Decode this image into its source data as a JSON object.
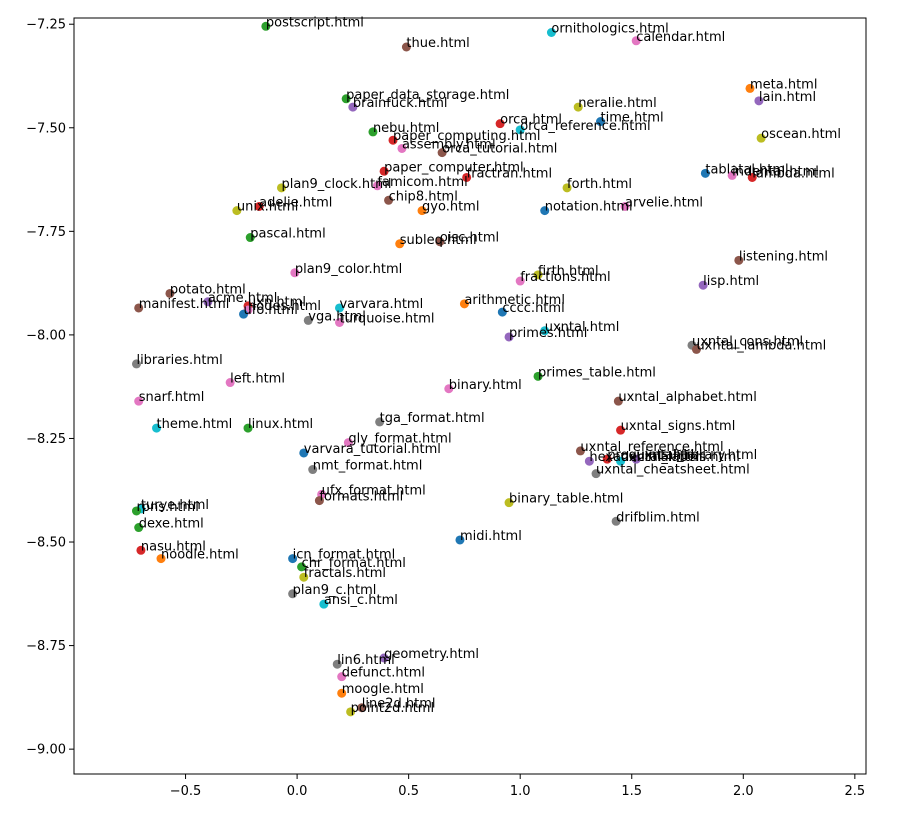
{
  "chart_data": {
    "type": "scatter",
    "title": "",
    "xlabel": "",
    "ylabel": "",
    "xlim": [
      -1.0,
      2.55
    ],
    "ylim": [
      -9.06,
      -7.235
    ],
    "grid": false,
    "legend": "none",
    "x_ticks": [
      {
        "value": -0.5,
        "label": "−0.5"
      },
      {
        "value": 0.0,
        "label": "0.0"
      },
      {
        "value": 0.5,
        "label": "0.5"
      },
      {
        "value": 1.0,
        "label": "1.0"
      },
      {
        "value": 1.5,
        "label": "1.5"
      },
      {
        "value": 2.0,
        "label": "2.0"
      },
      {
        "value": 2.5,
        "label": "2.5"
      }
    ],
    "y_ticks": [
      {
        "value": -7.25,
        "label": "−7.25"
      },
      {
        "value": -7.5,
        "label": "−7.50"
      },
      {
        "value": -7.75,
        "label": "−7.75"
      },
      {
        "value": -8.0,
        "label": "−8.00"
      },
      {
        "value": -8.25,
        "label": "−8.25"
      },
      {
        "value": -8.5,
        "label": "−8.50"
      },
      {
        "value": -8.75,
        "label": "−8.75"
      },
      {
        "value": -9.0,
        "label": "−9.00"
      }
    ],
    "palette": [
      "#1f77b4",
      "#ff7f0e",
      "#2ca02c",
      "#d62728",
      "#9467bd",
      "#8c564b",
      "#e377c2",
      "#7f7f7f",
      "#bcbd22",
      "#17becf"
    ],
    "points": [
      {
        "label": "postscript.html",
        "x": -0.14,
        "y": -7.255,
        "color": "#2ca02c"
      },
      {
        "label": "thue.html",
        "x": 0.49,
        "y": -7.305,
        "color": "#8c564b"
      },
      {
        "label": "ornithologics.html",
        "x": 1.14,
        "y": -7.27,
        "color": "#17becf"
      },
      {
        "label": "calendar.html",
        "x": 1.52,
        "y": -7.29,
        "color": "#e377c2"
      },
      {
        "label": "meta.html",
        "x": 2.03,
        "y": -7.405,
        "color": "#ff7f0e"
      },
      {
        "label": "lain.html",
        "x": 2.07,
        "y": -7.435,
        "color": "#9467bd"
      },
      {
        "label": "paper_data_storage.html",
        "x": 0.22,
        "y": -7.43,
        "color": "#2ca02c"
      },
      {
        "label": "brainfuck.html",
        "x": 0.25,
        "y": -7.45,
        "color": "#9467bd"
      },
      {
        "label": "neralie.html",
        "x": 1.26,
        "y": -7.45,
        "color": "#bcbd22"
      },
      {
        "label": "time.html",
        "x": 1.36,
        "y": -7.485,
        "color": "#1f77b4"
      },
      {
        "label": "orca.html",
        "x": 0.91,
        "y": -7.49,
        "color": "#d62728"
      },
      {
        "label": "orca_reference.html",
        "x": 1.0,
        "y": -7.505,
        "color": "#17becf"
      },
      {
        "label": "nebu.html",
        "x": 0.34,
        "y": -7.51,
        "color": "#2ca02c"
      },
      {
        "label": "paper_computing.html",
        "x": 0.43,
        "y": -7.53,
        "color": "#d62728"
      },
      {
        "label": "assembly.html",
        "x": 0.47,
        "y": -7.55,
        "color": "#e377c2"
      },
      {
        "label": "orca_tutorial.html",
        "x": 0.65,
        "y": -7.56,
        "color": "#8c564b"
      },
      {
        "label": "oscean.html",
        "x": 2.08,
        "y": -7.525,
        "color": "#bcbd22"
      },
      {
        "label": "paper_computer.html",
        "x": 0.39,
        "y": -7.605,
        "color": "#d62728"
      },
      {
        "label": "fractran.html",
        "x": 0.76,
        "y": -7.62,
        "color": "#d62728"
      },
      {
        "label": "famicom.html",
        "x": 0.36,
        "y": -7.64,
        "color": "#e377c2"
      },
      {
        "label": "tablatal.html",
        "x": 1.83,
        "y": -7.61,
        "color": "#1f77b4"
      },
      {
        "label": "indental.html",
        "x": 1.95,
        "y": -7.615,
        "color": "#e377c2"
      },
      {
        "label": "lambda.html",
        "x": 2.04,
        "y": -7.62,
        "color": "#d62728"
      },
      {
        "label": "plan9_clock.html",
        "x": -0.07,
        "y": -7.645,
        "color": "#bcbd22"
      },
      {
        "label": "forth.html",
        "x": 1.21,
        "y": -7.645,
        "color": "#bcbd22"
      },
      {
        "label": "chip8.html",
        "x": 0.41,
        "y": -7.675,
        "color": "#8c564b"
      },
      {
        "label": "adelie.html",
        "x": -0.17,
        "y": -7.69,
        "color": "#d62728"
      },
      {
        "label": "unix.html",
        "x": -0.27,
        "y": -7.7,
        "color": "#bcbd22"
      },
      {
        "label": "gyo.html",
        "x": 0.56,
        "y": -7.7,
        "color": "#ff7f0e"
      },
      {
        "label": "notation.html",
        "x": 1.11,
        "y": -7.7,
        "color": "#1f77b4"
      },
      {
        "label": "arvelie.html",
        "x": 1.47,
        "y": -7.69,
        "color": "#e377c2"
      },
      {
        "label": "pascal.html",
        "x": -0.21,
        "y": -7.765,
        "color": "#2ca02c"
      },
      {
        "label": "subleq.html",
        "x": 0.46,
        "y": -7.78,
        "color": "#ff7f0e"
      },
      {
        "label": "oisc.html",
        "x": 0.64,
        "y": -7.775,
        "color": "#8c564b"
      },
      {
        "label": "listening.html",
        "x": 1.98,
        "y": -7.82,
        "color": "#8c564b"
      },
      {
        "label": "plan9_color.html",
        "x": -0.01,
        "y": -7.85,
        "color": "#e377c2"
      },
      {
        "label": "firth.html",
        "x": 1.08,
        "y": -7.855,
        "color": "#bcbd22"
      },
      {
        "label": "fractions.html",
        "x": 1.0,
        "y": -7.87,
        "color": "#e377c2"
      },
      {
        "label": "lisp.html",
        "x": 1.82,
        "y": -7.88,
        "color": "#9467bd"
      },
      {
        "label": "potato.html",
        "x": -0.57,
        "y": -7.9,
        "color": "#8c564b"
      },
      {
        "label": "acme.html",
        "x": -0.4,
        "y": -7.92,
        "color": "#9467bd"
      },
      {
        "label": "uxn.html",
        "x": -0.22,
        "y": -7.93,
        "color": "#d62728"
      },
      {
        "label": "nodes.html",
        "x": -0.22,
        "y": -7.94,
        "color": "#e377c2"
      },
      {
        "label": "manifest.html",
        "x": -0.71,
        "y": -7.935,
        "color": "#8c564b"
      },
      {
        "label": "ufo.html",
        "x": -0.24,
        "y": -7.95,
        "color": "#1f77b4"
      },
      {
        "label": "varvara.html",
        "x": 0.19,
        "y": -7.935,
        "color": "#17becf"
      },
      {
        "label": "vga.html",
        "x": 0.05,
        "y": -7.965,
        "color": "#7f7f7f"
      },
      {
        "label": "turquoise.html",
        "x": 0.19,
        "y": -7.97,
        "color": "#e377c2"
      },
      {
        "label": "arithmetic.html",
        "x": 0.75,
        "y": -7.925,
        "color": "#ff7f0e"
      },
      {
        "label": "cccc.html",
        "x": 0.92,
        "y": -7.945,
        "color": "#1f77b4"
      },
      {
        "label": "uxntal.html",
        "x": 1.11,
        "y": -7.99,
        "color": "#17becf"
      },
      {
        "label": "primes.html",
        "x": 0.95,
        "y": -8.005,
        "color": "#9467bd"
      },
      {
        "label": "uxntal_cons.html",
        "x": 1.77,
        "y": -8.025,
        "color": "#7f7f7f"
      },
      {
        "label": "uxntal_lambda.html",
        "x": 1.79,
        "y": -8.035,
        "color": "#8c564b"
      },
      {
        "label": "libraries.html",
        "x": -0.72,
        "y": -8.07,
        "color": "#7f7f7f"
      },
      {
        "label": "left.html",
        "x": -0.3,
        "y": -8.115,
        "color": "#e377c2"
      },
      {
        "label": "primes_table.html",
        "x": 1.08,
        "y": -8.1,
        "color": "#2ca02c"
      },
      {
        "label": "binary.html",
        "x": 0.68,
        "y": -8.13,
        "color": "#e377c2"
      },
      {
        "label": "snarf.html",
        "x": -0.71,
        "y": -8.16,
        "color": "#e377c2"
      },
      {
        "label": "uxntal_alphabet.html",
        "x": 1.44,
        "y": -8.16,
        "color": "#8c564b"
      },
      {
        "label": "tga_format.html",
        "x": 0.37,
        "y": -8.21,
        "color": "#7f7f7f"
      },
      {
        "label": "theme.html",
        "x": -0.63,
        "y": -8.225,
        "color": "#17becf"
      },
      {
        "label": "linux.html",
        "x": -0.22,
        "y": -8.225,
        "color": "#2ca02c"
      },
      {
        "label": "uxntal_signs.html",
        "x": 1.45,
        "y": -8.23,
        "color": "#d62728"
      },
      {
        "label": "gly_format.html",
        "x": 0.23,
        "y": -8.26,
        "color": "#e377c2"
      },
      {
        "label": "varvara_tutorial.html",
        "x": 0.03,
        "y": -8.285,
        "color": "#1f77b4"
      },
      {
        "label": "uxntal_reference.html",
        "x": 1.27,
        "y": -8.28,
        "color": "#8c564b"
      },
      {
        "label": "hexadecimal.html",
        "x": 1.31,
        "y": -8.305,
        "color": "#9467bd"
      },
      {
        "label": "proquints.html",
        "x": 1.39,
        "y": -8.3,
        "color": "#d62728"
      },
      {
        "label": "uxntal_labels.html",
        "x": 1.45,
        "y": -8.305,
        "color": "#17becf"
      },
      {
        "label": "uxntal_library.html",
        "x": 1.52,
        "y": -8.3,
        "color": "#9467bd"
      },
      {
        "label": "uxntal_cheatsheet.html",
        "x": 1.34,
        "y": -8.335,
        "color": "#7f7f7f"
      },
      {
        "label": "nmt_format.html",
        "x": 0.07,
        "y": -8.325,
        "color": "#7f7f7f"
      },
      {
        "label": "ufx_format.html",
        "x": 0.11,
        "y": -8.385,
        "color": "#e377c2"
      },
      {
        "label": "formats.html",
        "x": 0.1,
        "y": -8.4,
        "color": "#8c564b"
      },
      {
        "label": "binary_table.html",
        "x": 0.95,
        "y": -8.405,
        "color": "#bcbd22"
      },
      {
        "label": "drifblim.html",
        "x": 1.43,
        "y": -8.45,
        "color": "#7f7f7f"
      },
      {
        "label": "turye.html",
        "x": -0.7,
        "y": -8.42,
        "color": "#17becf"
      },
      {
        "label": "rpns.html",
        "x": -0.72,
        "y": -8.425,
        "color": "#2ca02c"
      },
      {
        "label": "dexe.html",
        "x": -0.71,
        "y": -8.465,
        "color": "#2ca02c"
      },
      {
        "label": "midi.html",
        "x": 0.73,
        "y": -8.495,
        "color": "#1f77b4"
      },
      {
        "label": "nasu.html",
        "x": -0.7,
        "y": -8.52,
        "color": "#d62728"
      },
      {
        "label": "noodle.html",
        "x": -0.61,
        "y": -8.54,
        "color": "#ff7f0e"
      },
      {
        "label": "icn_format.html",
        "x": -0.02,
        "y": -8.54,
        "color": "#1f77b4"
      },
      {
        "label": "chr_format.html",
        "x": 0.02,
        "y": -8.56,
        "color": "#2ca02c"
      },
      {
        "label": "fractals.html",
        "x": 0.03,
        "y": -8.585,
        "color": "#bcbd22"
      },
      {
        "label": "plan9_c.html",
        "x": -0.02,
        "y": -8.625,
        "color": "#7f7f7f"
      },
      {
        "label": "ansi_c.html",
        "x": 0.12,
        "y": -8.65,
        "color": "#17becf"
      },
      {
        "label": "geometry.html",
        "x": 0.39,
        "y": -8.78,
        "color": "#9467bd"
      },
      {
        "label": "lin6.html",
        "x": 0.18,
        "y": -8.795,
        "color": "#7f7f7f"
      },
      {
        "label": "defunct.html",
        "x": 0.2,
        "y": -8.825,
        "color": "#e377c2"
      },
      {
        "label": "moogle.html",
        "x": 0.2,
        "y": -8.865,
        "color": "#ff7f0e"
      },
      {
        "label": "line2d.html",
        "x": 0.29,
        "y": -8.9,
        "color": "#8c564b"
      },
      {
        "label": "point2d.html",
        "x": 0.24,
        "y": -8.91,
        "color": "#bcbd22"
      }
    ]
  }
}
